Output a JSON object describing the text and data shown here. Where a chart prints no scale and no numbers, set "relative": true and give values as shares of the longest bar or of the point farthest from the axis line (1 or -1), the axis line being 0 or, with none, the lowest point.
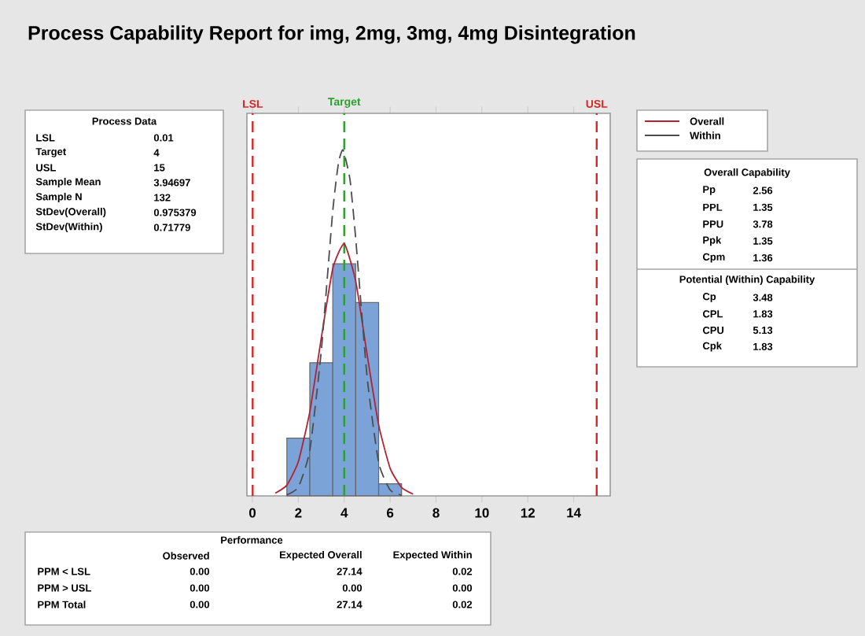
{
  "chart_data": {
    "type": "histogram",
    "title": "Process Capability Report for img, 2mg, 3mg, 4mg Disintegration",
    "relative": true,
    "bins": [
      1.5,
      2.5,
      3.5,
      4.5,
      5.5,
      6.5
    ],
    "values": [
      0.167,
      0.385,
      0.671,
      0.559,
      0.035
    ],
    "color": "#7ba3d8",
    "series": [
      {
        "name": "Overall",
        "type": "line",
        "color": "#b22234",
        "line_style": "solid",
        "x": [
          1,
          1.5,
          2,
          2.5,
          3,
          3.5,
          4,
          4.5,
          5,
          5.5,
          6,
          6.5,
          7
        ],
        "values": [
          0.008,
          0.031,
          0.099,
          0.243,
          0.456,
          0.657,
          0.729,
          0.621,
          0.407,
          0.205,
          0.08,
          0.024,
          0.005
        ]
      },
      {
        "name": "Within",
        "type": "line",
        "color": "#4d4d4d",
        "line_style": "dashed",
        "x": [
          1.5,
          2,
          2.5,
          3,
          3.5,
          3.75,
          3.95,
          4.25,
          4.5,
          5,
          5.5,
          6,
          6.5
        ],
        "values": [
          0.003,
          0.025,
          0.131,
          0.419,
          0.824,
          0.963,
          1,
          0.915,
          0.744,
          0.341,
          0.096,
          0.017,
          0.002
        ]
      }
    ],
    "xlim": [
      -0.24,
      15.59
    ],
    "xticks": [
      0,
      2,
      4,
      6,
      8,
      10,
      12,
      14
    ],
    "grid": false,
    "legend": "right",
    "ref_lines": [
      {
        "axis": "x",
        "value": 0.01,
        "label": "LSL",
        "color": "#d62728",
        "line_style": "dashed"
      },
      {
        "axis": "x",
        "value": 4,
        "label": "Target",
        "color": "#2ca02c",
        "line_style": "dashed"
      },
      {
        "axis": "x",
        "value": 15,
        "label": "USL",
        "color": "#d62728",
        "line_style": "dashed"
      }
    ],
    "annotations": [
      "Process Data",
      "LSL",
      "0.01",
      "Target",
      "4",
      "USL",
      "15",
      "Sample Mean",
      "3.94697",
      "Sample N",
      "132",
      "StDev(Overall)",
      "0.975379",
      "StDev(Within)",
      "0.71779",
      "Overall Capability",
      "Pp",
      "2.56",
      "PPL",
      "1.35",
      "PPU",
      "3.78",
      "Ppk",
      "1.35",
      "Cpm",
      "1.36",
      "Potential (Within) Capability",
      "Cp",
      "3.48",
      "CPL",
      "1.83",
      "CPU",
      "5.13",
      "Cpk",
      "1.83",
      "Performance",
      "Observed",
      "Expected Overall",
      "Expected Within",
      "PPM < LSL",
      "0.00",
      "27.14",
      "0.02",
      "PPM > USL",
      "0.00",
      "0.00",
      "0.00",
      "PPM Total",
      "0.00",
      "27.14",
      "0.02"
    ]
  }
}
